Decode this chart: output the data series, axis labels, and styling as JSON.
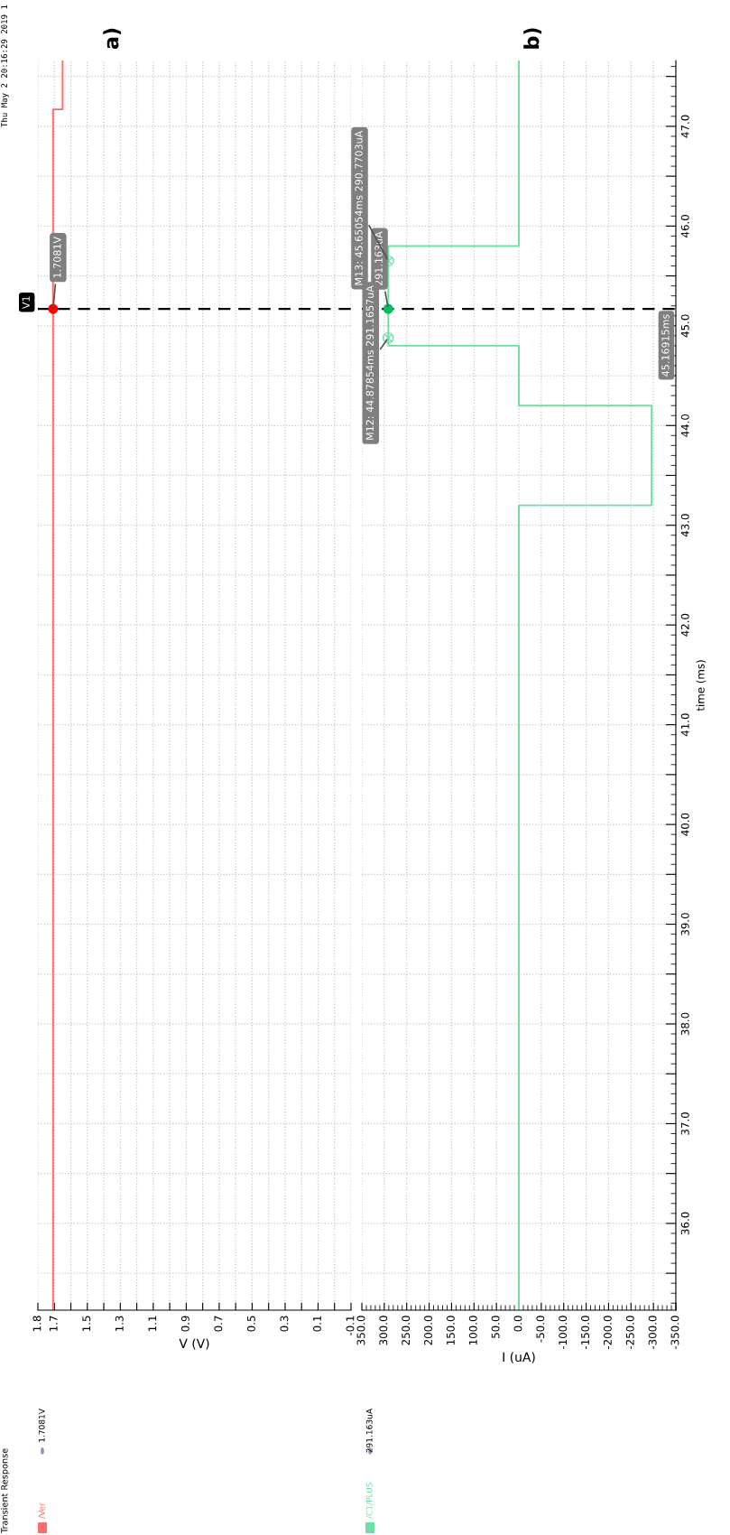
{
  "chart_data": [
    {
      "type": "line",
      "title": "Transient Response",
      "subtitle": "Thu May 2 20:16:29 2019 1",
      "xlabel": "V (V)",
      "xlim": [
        1.8,
        -0.1
      ],
      "xticks": [
        1.8,
        1.7,
        {
          "value": 1.6,
          "label": null
        },
        1.5,
        {
          "value": 1.4,
          "label": null
        },
        1.3,
        {
          "value": 1.2,
          "label": null
        },
        1.1,
        {
          "value": 1.0,
          "label": null
        },
        0.9,
        {
          "value": 0.8,
          "label": null
        },
        0.7,
        {
          "value": 0.6,
          "label": null
        },
        0.5,
        {
          "value": 0.4,
          "label": null
        },
        0.3,
        {
          "value": 0.2,
          "label": null
        },
        0.1,
        {
          "value": 0,
          "label": null
        },
        -0.1
      ],
      "ylim": [
        35.13,
        47.66
      ],
      "yticks": [
        {
          "value": 35.5,
          "label": null
        },
        {
          "value": 36,
          "label": null
        },
        {
          "value": 36.5,
          "label": null
        },
        {
          "value": 37,
          "label": null
        },
        {
          "value": 37.5,
          "label": null
        },
        {
          "value": 38,
          "label": null
        },
        {
          "value": 38.5,
          "label": null
        },
        {
          "value": 39,
          "label": null
        },
        {
          "value": 39.5,
          "label": null
        },
        {
          "value": 40,
          "label": null
        },
        {
          "value": 40.5,
          "label": null
        },
        {
          "value": 41,
          "label": null
        },
        {
          "value": 41.5,
          "label": null
        },
        {
          "value": 42,
          "label": null
        },
        {
          "value": 42.5,
          "label": null
        },
        {
          "value": 43,
          "label": null
        },
        {
          "value": 43.5,
          "label": null
        },
        {
          "value": 44,
          "label": null
        },
        {
          "value": 44.5,
          "label": null
        },
        {
          "value": 45,
          "label": null
        },
        {
          "value": 45.5,
          "label": null
        },
        {
          "value": 46,
          "label": null
        },
        {
          "value": 46.5,
          "label": null
        },
        {
          "value": 47,
          "label": null
        },
        {
          "value": 47.5,
          "label": null
        }
      ],
      "tick_labels": "x",
      "grid": true,
      "legend": "bottom",
      "series": [
        {
          "name": "/Ver",
          "color": "#ff6b6b",
          "x": [
            1.7081,
            1.7081,
            1.65,
            1.65
          ],
          "values": [
            35.13,
            47.17,
            47.17,
            47.66
          ]
        }
      ],
      "ref_lines": [
        {
          "axis": "y",
          "value": 45.16915,
          "label": "V1",
          "line_style": "dashed",
          "color": "#000000"
        }
      ],
      "annotations": [
        "a)",
        "1.7081V",
        {
          "text": "1.7081V",
          "x": 1.7081,
          "y": 45.16915
        }
      ]
    },
    {
      "type": "line",
      "xlabel": "I (uA)",
      "ylabel": "time (ms)",
      "xlim": [
        350,
        -350
      ],
      "xticks": [
        {
          "value": 350,
          "label": "350.0"
        },
        {
          "value": 300,
          "label": "300.0"
        },
        {
          "value": 250,
          "label": "250.0"
        },
        {
          "value": 200,
          "label": "200.0"
        },
        {
          "value": 150,
          "label": "150.0"
        },
        {
          "value": 100,
          "label": "100.0"
        },
        {
          "value": 50,
          "label": "50.0"
        },
        {
          "value": 0,
          "label": "0.0"
        },
        {
          "value": -50,
          "label": "-50.0"
        },
        {
          "value": -100,
          "label": "-100.0"
        },
        {
          "value": -150,
          "label": "-150.0"
        },
        {
          "value": -200,
          "label": "-200.0"
        },
        {
          "value": -250,
          "label": "-250.0"
        },
        {
          "value": -300,
          "label": "-300.0"
        },
        {
          "value": -350,
          "label": "-350.0"
        }
      ],
      "ylim": [
        35.13,
        47.66
      ],
      "yticks": [
        {
          "value": 35.5,
          "label": null
        },
        {
          "value": 36,
          "label": "36.0"
        },
        {
          "value": 36.5,
          "label": null
        },
        {
          "value": 37,
          "label": "37.0"
        },
        {
          "value": 37.5,
          "label": null
        },
        {
          "value": 38,
          "label": "38.0"
        },
        {
          "value": 38.5,
          "label": null
        },
        {
          "value": 39,
          "label": "39.0"
        },
        {
          "value": 39.5,
          "label": null
        },
        {
          "value": 40,
          "label": "40.0"
        },
        {
          "value": 40.5,
          "label": null
        },
        {
          "value": 41,
          "label": "41.0"
        },
        {
          "value": 41.5,
          "label": null
        },
        {
          "value": 42,
          "label": "42.0"
        },
        {
          "value": 42.5,
          "label": null
        },
        {
          "value": 43,
          "label": "43.0"
        },
        {
          "value": 43.5,
          "label": null
        },
        {
          "value": 44,
          "label": "44.0"
        },
        {
          "value": 44.5,
          "label": null
        },
        {
          "value": 45,
          "label": "45.0"
        },
        {
          "value": 45.5,
          "label": null
        },
        {
          "value": 46,
          "label": "46.0"
        },
        {
          "value": 46.5,
          "label": null
        },
        {
          "value": 47,
          "label": "47.0"
        },
        {
          "value": 47.5,
          "label": null
        }
      ],
      "grid": true,
      "legend": "bottom",
      "series": [
        {
          "name": "/C1/PLUS",
          "color": "#6ee0a4",
          "x": [
            0,
            0,
            -296,
            -296,
            0,
            0,
            291,
            291,
            0,
            0
          ],
          "values": [
            35.13,
            43.2,
            43.2,
            44.2,
            44.2,
            44.8,
            44.8,
            45.8,
            45.8,
            47.66
          ]
        }
      ],
      "ref_lines": [
        {
          "axis": "y",
          "value": 45.16915,
          "label": "45.16915ms",
          "line_style": "dashed",
          "color": "#000000"
        }
      ],
      "annotations": [
        "b)",
        "291.163uA",
        {
          "text": "291.163uA",
          "x": 291.163,
          "y": 45.16915
        },
        {
          "text": "M12: 44.87854ms 291.1657uA",
          "x": 291.1657,
          "y": 44.87854
        },
        {
          "text": "M13: 45.65054ms 290.7703uA",
          "x": 290.7703,
          "y": 45.65054
        }
      ]
    }
  ]
}
